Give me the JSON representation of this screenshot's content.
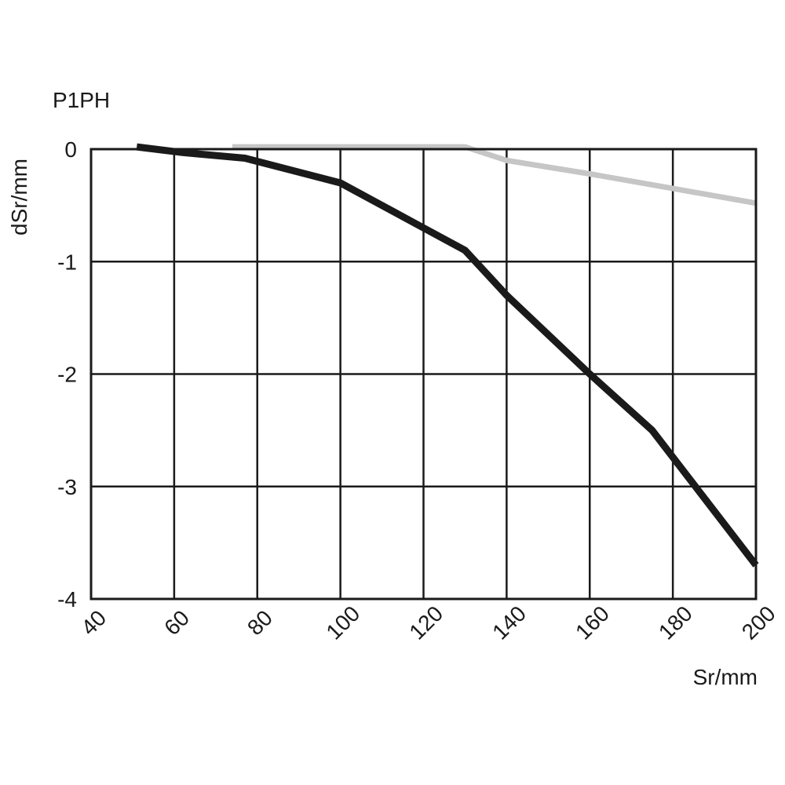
{
  "chart_data": {
    "type": "line",
    "title": "P1PH",
    "xlabel": "Sr/mm",
    "ylabel": "dSr/mm",
    "xlim": [
      40,
      200
    ],
    "ylim": [
      -4,
      0
    ],
    "x_ticks": [
      40,
      60,
      80,
      100,
      120,
      140,
      160,
      180,
      200
    ],
    "x_tick_labels": [
      "40",
      "60",
      "80",
      "100",
      "120",
      "140",
      "160",
      "180",
      "200"
    ],
    "y_ticks": [
      0,
      -1,
      -2,
      -3,
      -4
    ],
    "y_tick_labels": [
      "0",
      "-1",
      "-2",
      "-3",
      "-4"
    ],
    "grid": true,
    "legend": "none",
    "series": [
      {
        "color": "#1a1a1a",
        "points": [
          [
            51,
            0.02
          ],
          [
            62,
            -0.03
          ],
          [
            77,
            -0.08
          ],
          [
            100,
            -0.3
          ],
          [
            120,
            -0.7
          ],
          [
            130,
            -0.9
          ],
          [
            140,
            -1.3
          ],
          [
            160,
            -2.0
          ],
          [
            175,
            -2.5
          ],
          [
            200,
            -3.7
          ]
        ]
      },
      {
        "color": "#c6c6c6",
        "points": [
          [
            74,
            0.02
          ],
          [
            130,
            0.02
          ],
          [
            140,
            -0.1
          ],
          [
            160,
            -0.22
          ],
          [
            180,
            -0.35
          ],
          [
            200,
            -0.48
          ]
        ]
      }
    ]
  }
}
